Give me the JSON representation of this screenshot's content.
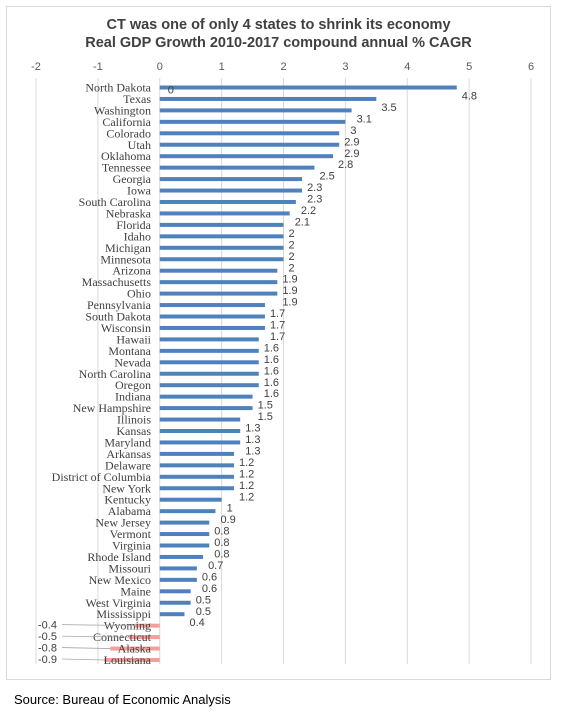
{
  "chart_data": {
    "type": "bar",
    "orientation": "horizontal",
    "title_lines": [
      "CT was one of only 4 states to shrink its economy",
      "Real GDP Growth 2010-2017 compound annual % CAGR"
    ],
    "xlim": [
      -2,
      6
    ],
    "x_ticks": [
      -2,
      -1,
      0,
      1,
      2,
      3,
      4,
      5,
      6
    ],
    "x_axis_position": "top",
    "grid": "vertical",
    "zero_label": "0",
    "colors": {
      "positive": "#4f81bd",
      "negative": "#f4a09a",
      "gridline": "#d9d9d9"
    },
    "categories": [
      "North Dakota",
      "Texas",
      "Washington",
      "California",
      "Colorado",
      "Utah",
      "Oklahoma",
      "Tennessee",
      "Georgia",
      "Iowa",
      "South Carolina",
      "Nebraska",
      "Florida",
      "Idaho",
      "Michigan",
      "Minnesota",
      "Arizona",
      "Massachusetts",
      "Ohio",
      "Pennsylvania",
      "South Dakota",
      "Wisconsin",
      "Hawaii",
      "Montana",
      "Nevada",
      "North Carolina",
      "Oregon",
      "Indiana",
      "New Hampshire",
      "Illinois",
      "Kansas",
      "Maryland",
      "Arkansas",
      "Delaware",
      "District of Columbia",
      "New York",
      "Kentucky",
      "Alabama",
      "New Jersey",
      "Vermont",
      "Virginia",
      "Rhode Island",
      "Missouri",
      "New Mexico",
      "Maine",
      "West Virginia",
      "Mississippi",
      "Wyoming",
      "Connecticut",
      "Alaska",
      "Louisiana"
    ],
    "values": [
      4.8,
      3.5,
      3.1,
      3,
      2.9,
      2.9,
      2.8,
      2.5,
      2.3,
      2.3,
      2.2,
      2.1,
      2,
      2,
      2,
      2,
      1.9,
      1.9,
      1.9,
      1.7,
      1.7,
      1.7,
      1.6,
      1.6,
      1.6,
      1.6,
      1.6,
      1.5,
      1.5,
      1.3,
      1.3,
      1.3,
      1.2,
      1.2,
      1.2,
      1.2,
      1,
      0.9,
      0.8,
      0.8,
      0.8,
      0.7,
      0.6,
      0.6,
      0.5,
      0.5,
      0.4,
      -0.4,
      -0.5,
      -0.8,
      -0.9
    ],
    "value_labels": [
      "4.8",
      "3.5",
      "3.1",
      "3",
      "2.9",
      "2.9",
      "2.8",
      "2.5",
      "2.3",
      "2.3",
      "2.2",
      "2.1",
      "2",
      "2",
      "2",
      "2",
      "1.9",
      "1.9",
      "1.9",
      "1.7",
      "1.7",
      "1.7",
      "1.6",
      "1.6",
      "1.6",
      "1.6",
      "1.6",
      "1.5",
      "1.5",
      "1.3",
      "1.3",
      "1.3",
      "1.2",
      "1.2",
      "1.2",
      "1.2",
      "1",
      "0.9",
      "0.8",
      "0.8",
      "0.8",
      "0.7",
      "0.6",
      "0.6",
      "0.5",
      "0.5",
      "0.4",
      "-0.4",
      "-0.5",
      "-0.8",
      "-0.9"
    ]
  },
  "source": "Source: Bureau of Economic Analysis"
}
